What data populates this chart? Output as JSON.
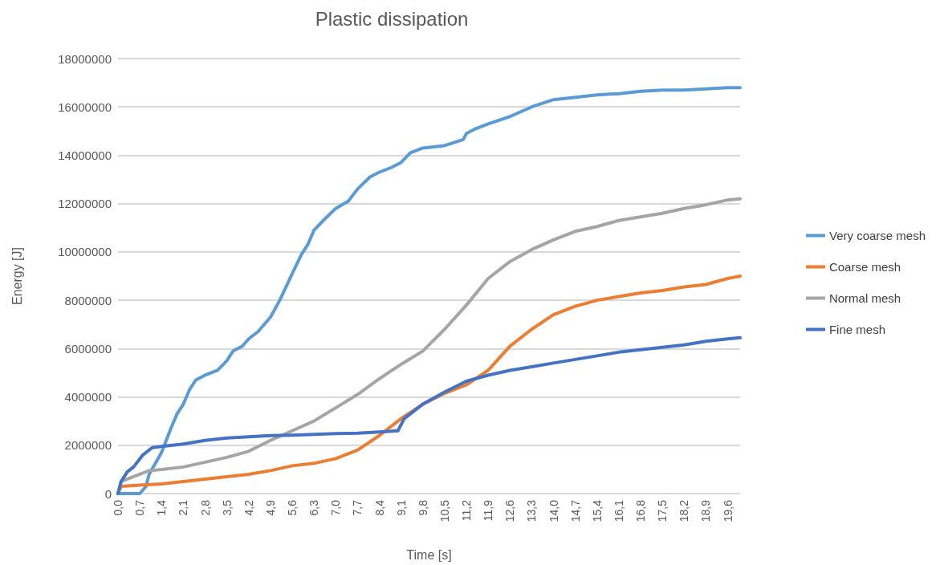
{
  "chart_data": {
    "type": "line",
    "title": "Plastic dissipation",
    "xlabel": "Time [s]",
    "ylabel": "Energy [J]",
    "xlim": [
      0,
      20
    ],
    "xticks": [
      {
        "value": 0,
        "label": "0,0"
      },
      {
        "value": 0.7,
        "label": "0,7"
      },
      {
        "value": 1.4,
        "label": "1,4"
      },
      {
        "value": 2.1,
        "label": "2,1"
      },
      {
        "value": 2.8,
        "label": "2,8"
      },
      {
        "value": 3.5,
        "label": "3,5"
      },
      {
        "value": 4.2,
        "label": "4,2"
      },
      {
        "value": 4.9,
        "label": "4,9"
      },
      {
        "value": 5.6,
        "label": "5,6"
      },
      {
        "value": 6.3,
        "label": "6,3"
      },
      {
        "value": 7,
        "label": "7,0"
      },
      {
        "value": 7.7,
        "label": "7,7"
      },
      {
        "value": 8.4,
        "label": "8,4"
      },
      {
        "value": 9.1,
        "label": "9,1"
      },
      {
        "value": 9.8,
        "label": "9,8"
      },
      {
        "value": 10.5,
        "label": "10,5"
      },
      {
        "value": 11.2,
        "label": "11,2"
      },
      {
        "value": 11.9,
        "label": "11,9"
      },
      {
        "value": 12.6,
        "label": "12,6"
      },
      {
        "value": 13.3,
        "label": "13,3"
      },
      {
        "value": 14,
        "label": "14,0"
      },
      {
        "value": 14.7,
        "label": "14,7"
      },
      {
        "value": 15.4,
        "label": "15,4"
      },
      {
        "value": 16.1,
        "label": "16,1"
      },
      {
        "value": 16.8,
        "label": "16,8"
      },
      {
        "value": 17.5,
        "label": "17,5"
      },
      {
        "value": 18.2,
        "label": "18,2"
      },
      {
        "value": 18.9,
        "label": "18,9"
      },
      {
        "value": 19.6,
        "label": "19,6"
      }
    ],
    "ylim": [
      0,
      18000000
    ],
    "yticks": [
      0,
      2000000,
      4000000,
      6000000,
      8000000,
      10000000,
      12000000,
      14000000,
      16000000,
      18000000
    ],
    "grid": "y",
    "legend": "right",
    "marker": "none",
    "line_style": "solid",
    "series": [
      {
        "name": "Very coarse mesh",
        "color": "#5b9bd5",
        "x": [
          0,
          0.7,
          0.9,
          1.0,
          1.4,
          1.7,
          1.9,
          2.1,
          2.3,
          2.5,
          2.8,
          3.2,
          3.5,
          3.7,
          4.0,
          4.2,
          4.5,
          4.9,
          5.2,
          5.6,
          5.9,
          6.1,
          6.3,
          6.6,
          7.0,
          7.4,
          7.7,
          8.1,
          8.4,
          8.8,
          9.1,
          9.4,
          9.8,
          10.5,
          11.1,
          11.2,
          11.5,
          11.9,
          12.6,
          13.3,
          14.0,
          14.7,
          15.4,
          16.1,
          16.8,
          17.5,
          18.2,
          18.9,
          19.6,
          20
        ],
        "values": [
          0,
          0,
          300000,
          800000,
          1700000,
          2700000,
          3300000,
          3700000,
          4300000,
          4700000,
          4900000,
          5100000,
          5500000,
          5900000,
          6100000,
          6400000,
          6700000,
          7300000,
          8000000,
          9100000,
          9900000,
          10300000,
          10900000,
          11300000,
          11800000,
          12100000,
          12600000,
          13100000,
          13300000,
          13500000,
          13700000,
          14100000,
          14300000,
          14400000,
          14650000,
          14900000,
          15100000,
          15300000,
          15600000,
          16000000,
          16300000,
          16400000,
          16500000,
          16550000,
          16650000,
          16700000,
          16700000,
          16750000,
          16800000,
          16800000
        ]
      },
      {
        "name": "Coarse mesh",
        "color": "#ed7d31",
        "x": [
          0,
          0.1,
          0.7,
          1.4,
          2.1,
          2.8,
          3.5,
          4.2,
          4.9,
          5.6,
          6.3,
          7.0,
          7.7,
          8.4,
          9.1,
          9.8,
          10.5,
          11.2,
          11.9,
          12.6,
          13.3,
          14.0,
          14.7,
          15.4,
          16.1,
          16.8,
          17.5,
          18.2,
          18.9,
          19.6,
          20
        ],
        "values": [
          0,
          300000,
          350000,
          400000,
          500000,
          600000,
          700000,
          800000,
          950000,
          1150000,
          1250000,
          1450000,
          1800000,
          2400000,
          3100000,
          3700000,
          4150000,
          4500000,
          5100000,
          6100000,
          6800000,
          7400000,
          7750000,
          8000000,
          8150000,
          8300000,
          8400000,
          8550000,
          8650000,
          8900000,
          9000000
        ]
      },
      {
        "name": "Normal mesh",
        "color": "#a5a5a5",
        "x": [
          0,
          0.1,
          0.7,
          1.0,
          1.4,
          2.1,
          2.8,
          3.5,
          4.2,
          4.9,
          5.6,
          6.3,
          7.0,
          7.7,
          8.4,
          9.1,
          9.8,
          10.5,
          11.2,
          11.9,
          12.6,
          13.3,
          14.0,
          14.7,
          15.4,
          16.1,
          16.8,
          17.5,
          18.2,
          18.9,
          19.6,
          20
        ],
        "values": [
          0,
          500000,
          800000,
          950000,
          1000000,
          1100000,
          1300000,
          1500000,
          1750000,
          2200000,
          2600000,
          3000000,
          3550000,
          4100000,
          4750000,
          5350000,
          5900000,
          6800000,
          7800000,
          8900000,
          9600000,
          10100000,
          10500000,
          10850000,
          11050000,
          11300000,
          11450000,
          11600000,
          11800000,
          11950000,
          12150000,
          12200000
        ]
      },
      {
        "name": "Fine mesh",
        "color": "#4472c4",
        "x": [
          0,
          0.1,
          0.3,
          0.5,
          0.8,
          1.1,
          1.4,
          2.1,
          2.8,
          3.5,
          4.2,
          4.9,
          5.6,
          6.3,
          7.0,
          7.7,
          8.4,
          9.0,
          9.2,
          9.8,
          10.5,
          11.2,
          11.9,
          12.6,
          13.3,
          14.0,
          14.7,
          15.4,
          16.1,
          16.8,
          17.5,
          18.2,
          18.9,
          19.6,
          20
        ],
        "values": [
          0,
          500000,
          900000,
          1100000,
          1600000,
          1900000,
          1950000,
          2050000,
          2200000,
          2300000,
          2350000,
          2400000,
          2420000,
          2450000,
          2480000,
          2500000,
          2550000,
          2600000,
          3100000,
          3700000,
          4200000,
          4650000,
          4900000,
          5100000,
          5250000,
          5400000,
          5550000,
          5700000,
          5850000,
          5950000,
          6050000,
          6150000,
          6300000,
          6400000,
          6450000
        ]
      }
    ]
  }
}
